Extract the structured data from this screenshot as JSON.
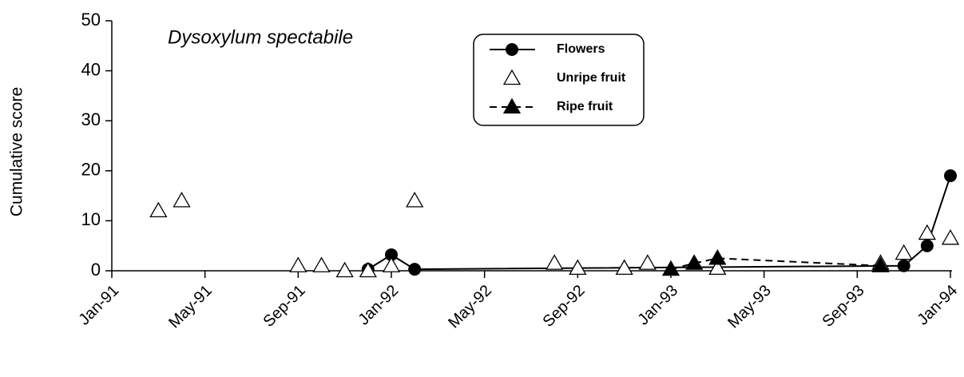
{
  "chart_data": {
    "type": "line",
    "annotation": "Dysoxylum spectabile",
    "y_label": "Cumulative score",
    "xlim": [
      "1991-01",
      "1994-01"
    ],
    "xticks": [
      {
        "value": "1991-01",
        "label": "Jan-91"
      },
      {
        "value": "1991-05",
        "label": "May-91"
      },
      {
        "value": "1991-09",
        "label": "Sep-91"
      },
      {
        "value": "1992-01",
        "label": "Jan-92"
      },
      {
        "value": "1992-05",
        "label": "May-92"
      },
      {
        "value": "1992-09",
        "label": "Sep-92"
      },
      {
        "value": "1993-01",
        "label": "Jan-93"
      },
      {
        "value": "1993-05",
        "label": "May-93"
      },
      {
        "value": "1993-09",
        "label": "Sep-93"
      },
      {
        "value": "1994-01",
        "label": "Jan-94"
      }
    ],
    "ylim": [
      0,
      50
    ],
    "yticks": [
      0,
      10,
      20,
      30,
      40,
      50
    ],
    "legend": "top-center",
    "series": [
      {
        "name": "Flowers",
        "color": "#000000",
        "line_style": "solid",
        "marker": "circle",
        "x": [
          "1991-12",
          "1992-01",
          "1992-02",
          "1993-11",
          "1993-12",
          "1994-01"
        ],
        "values": [
          0.3,
          3.2,
          0.3,
          1,
          5,
          19
        ]
      },
      {
        "name": "Unripe fruit",
        "color": "#000000",
        "line_style": "none",
        "marker": "triangle-open",
        "x": [
          "1991-03",
          "1991-04",
          "1991-09",
          "1991-10",
          "1991-11",
          "1991-12",
          "1992-01",
          "1992-02",
          "1992-08",
          "1992-09",
          "1992-11",
          "1992-12",
          "1993-03",
          "1993-10",
          "1993-11",
          "1993-12",
          "1994-01"
        ],
        "values": [
          12,
          14,
          1,
          1,
          0,
          0,
          1,
          14,
          1.5,
          0.5,
          0.5,
          1.5,
          0.5,
          1.5,
          3.5,
          7.5,
          6.5
        ]
      },
      {
        "name": "Ripe fruit",
        "color": "#000000",
        "line_style": "dashed",
        "marker": "triangle",
        "x": [
          "1993-01",
          "1993-02",
          "1993-03",
          "1993-10"
        ],
        "values": [
          0.3,
          1.5,
          2.5,
          1
        ]
      }
    ]
  }
}
